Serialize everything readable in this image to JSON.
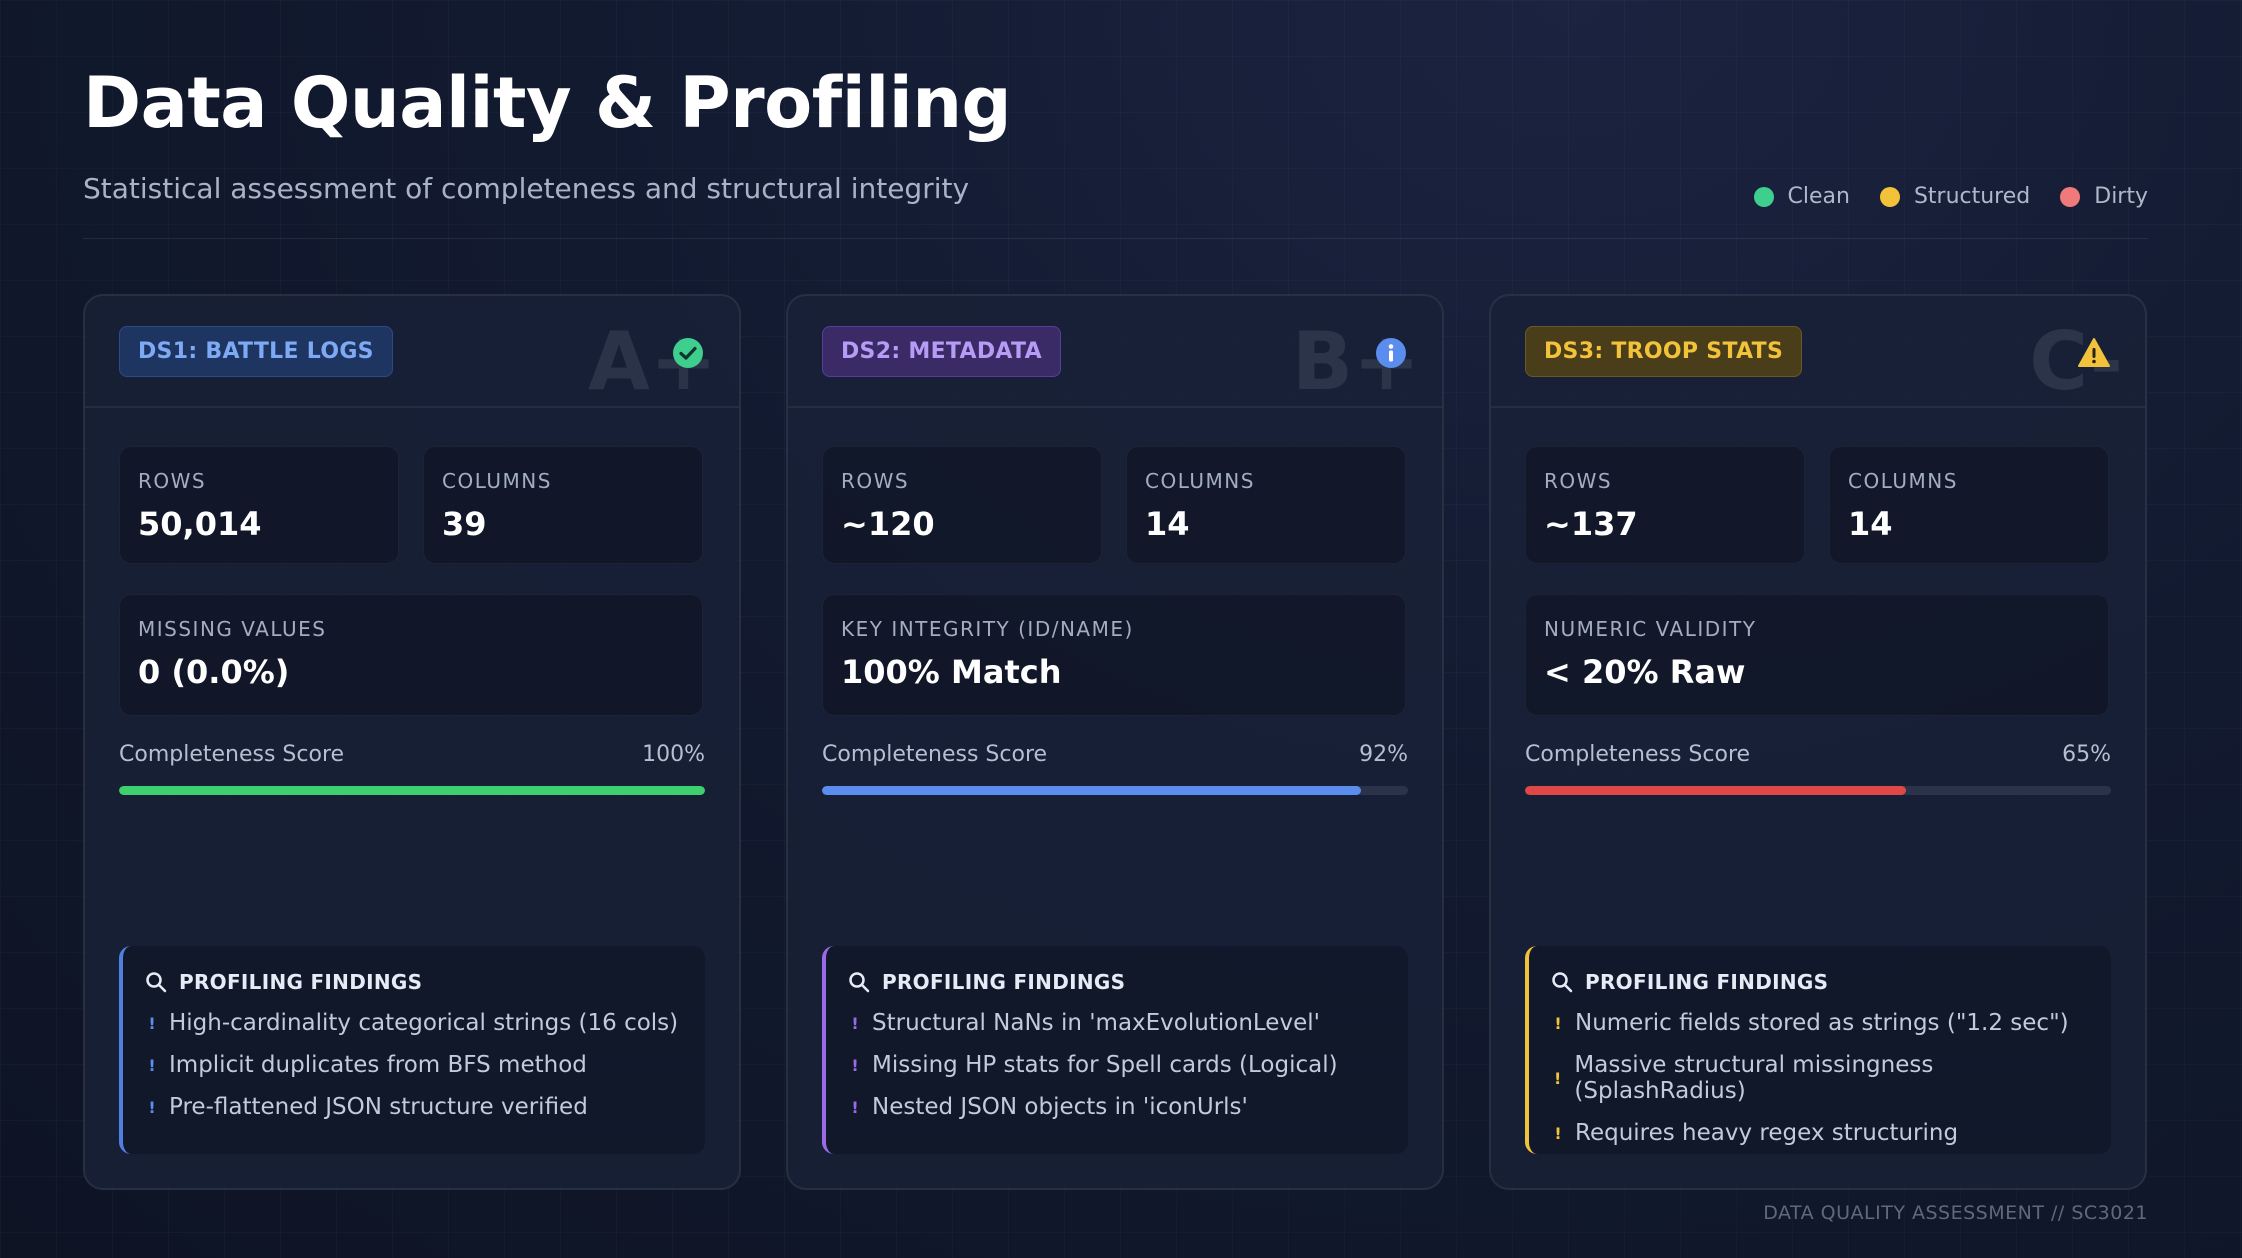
{
  "header": {
    "title": "Data Quality & Profiling",
    "subtitle": "Statistical assessment of completeness and structural integrity"
  },
  "legend": [
    {
      "label": "Clean",
      "color": "#3ecf8e"
    },
    {
      "label": "Structured",
      "color": "#f2c23a"
    },
    {
      "label": "Dirty",
      "color": "#f07a7a"
    }
  ],
  "cards": [
    {
      "badge": "DS1: BATTLE LOGS",
      "grade": "A+",
      "status_icon": "check-circle-icon",
      "accent": "#3ecf6e",
      "rows_label": "ROWS",
      "rows_value": "50,014",
      "cols_label": "COLUMNS",
      "cols_value": "39",
      "metric_label": "MISSING VALUES",
      "metric_value": "0 (0.0%)",
      "score_label": "Completeness Score",
      "score_text": "100%",
      "score": 1.0,
      "findings_title": "PROFILING FINDINGS",
      "findings": [
        "High-cardinality categorical strings (16 cols)",
        "Implicit duplicates from BFS method",
        "Pre-flattened JSON structure verified"
      ]
    },
    {
      "badge": "DS2: METADATA",
      "grade": "B+",
      "status_icon": "info-circle-icon",
      "accent": "#5b8def",
      "rows_label": "ROWS",
      "rows_value": "~120",
      "cols_label": "COLUMNS",
      "cols_value": "14",
      "metric_label": "KEY INTEGRITY (ID/NAME)",
      "metric_value": "100% Match",
      "score_label": "Completeness Score",
      "score_text": "92%",
      "score": 0.92,
      "findings_title": "PROFILING FINDINGS",
      "findings": [
        "Structural NaNs in 'maxEvolutionLevel'",
        "Missing HP stats for Spell cards (Logical)",
        "Nested JSON objects in 'iconUrls'"
      ]
    },
    {
      "badge": "DS3: TROOP STATS",
      "grade": "C-",
      "status_icon": "warning-triangle-icon",
      "accent": "#e04848",
      "rows_label": "ROWS",
      "rows_value": "~137",
      "cols_label": "COLUMNS",
      "cols_value": "14",
      "metric_label": "NUMERIC VALIDITY",
      "metric_value": "< 20% Raw",
      "score_label": "Completeness Score",
      "score_text": "65%",
      "score": 0.65,
      "findings_title": "PROFILING FINDINGS",
      "findings": [
        "Numeric fields stored as strings (\"1.2 sec\")",
        "Massive structural missingness (SplashRadius)",
        "Requires heavy regex structuring"
      ]
    }
  ],
  "footer": "DATA QUALITY ASSESSMENT // SC3021"
}
